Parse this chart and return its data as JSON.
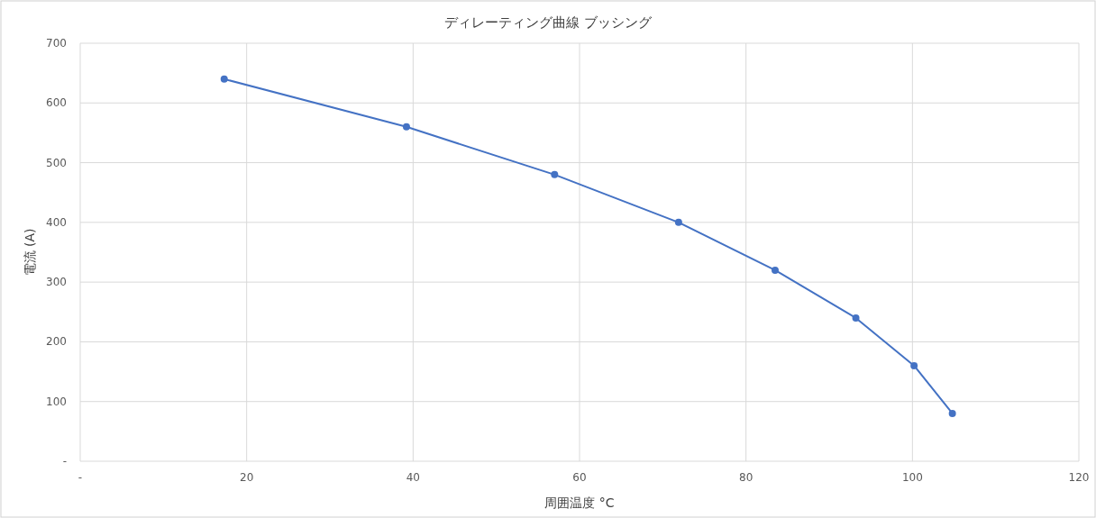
{
  "chart_data": {
    "type": "line",
    "title": "ディレーティング曲線 ブッシング",
    "xlabel": "周囲温度 °C",
    "ylabel": "電流 (A)",
    "x": [
      17.3,
      39.2,
      57.0,
      71.9,
      83.5,
      93.2,
      100.2,
      104.8
    ],
    "series": [
      {
        "color": "#4472c4",
        "values": [
          640,
          560,
          480,
          400,
          320,
          240,
          160,
          80
        ]
      }
    ],
    "marker": "circle",
    "grid": true,
    "xlim": [
      0,
      120
    ],
    "xticks": [
      {
        "value": 0,
        "label": "-"
      },
      20,
      40,
      60,
      80,
      100,
      120
    ],
    "ylim": [
      0,
      700
    ],
    "yticks": [
      {
        "value": 0,
        "label": "-"
      },
      100,
      200,
      300,
      400,
      500,
      600,
      700
    ]
  }
}
